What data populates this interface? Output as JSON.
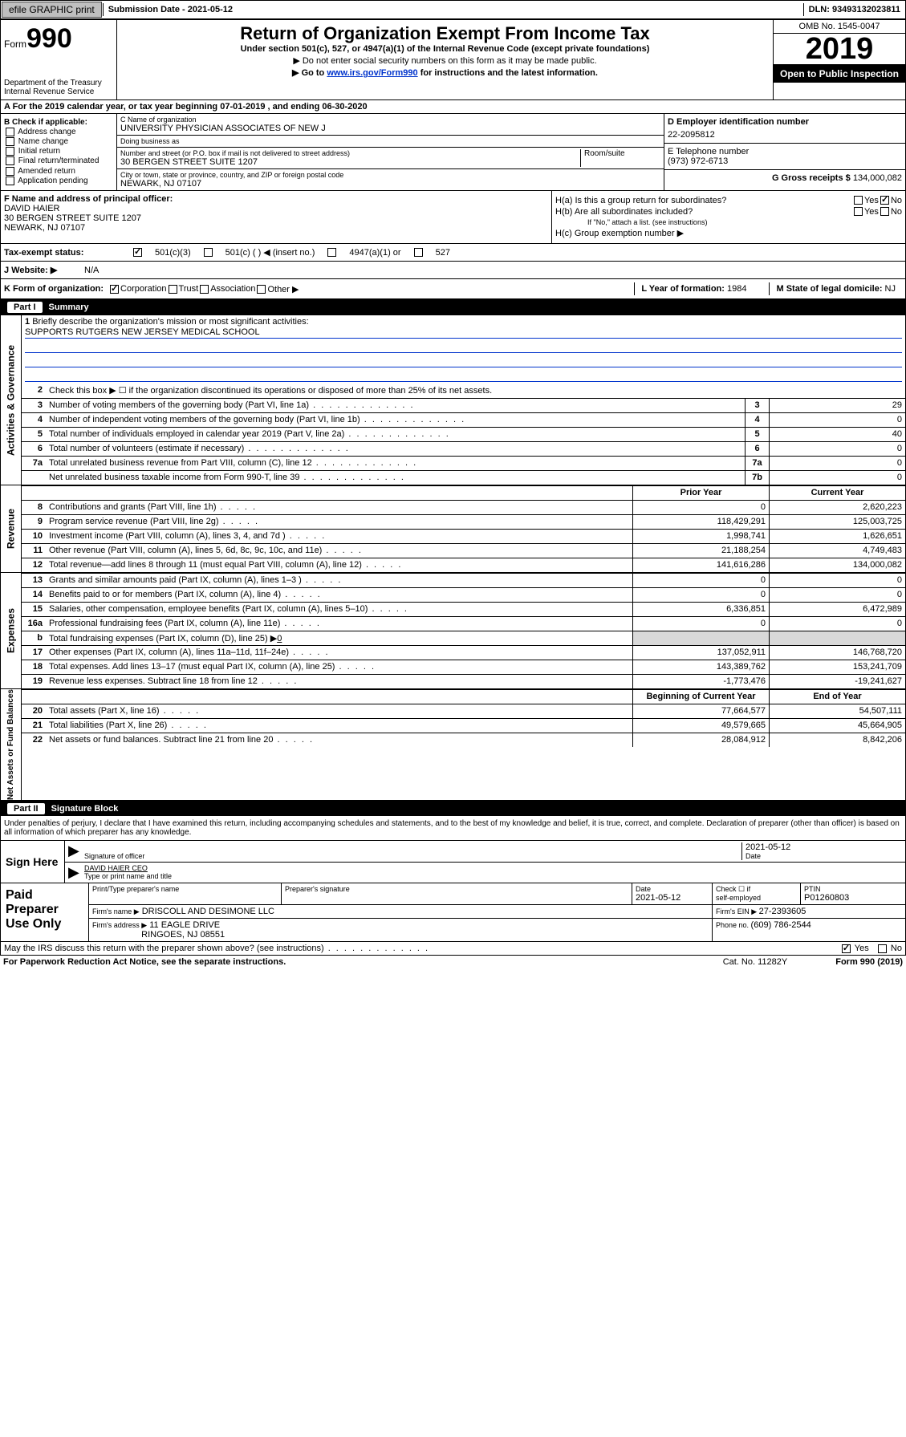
{
  "topbar": {
    "efile": "efile GRAPHIC print",
    "subdate_label": "Submission Date - ",
    "subdate": "2021-05-12",
    "dln": "DLN: 93493132023811"
  },
  "header": {
    "form_prefix": "Form",
    "form_no": "990",
    "dept": "Department of the Treasury\nInternal Revenue Service",
    "title": "Return of Organization Exempt From Income Tax",
    "sub": "Under section 501(c), 527, or 4947(a)(1) of the Internal Revenue Code (except private foundations)",
    "note1": "▶ Do not enter social security numbers on this form as it may be made public.",
    "note2_pre": "▶ Go to ",
    "note2_link": "www.irs.gov/Form990",
    "note2_post": " for instructions and the latest information.",
    "omb": "OMB No. 1545-0047",
    "year": "2019",
    "open": "Open to Public Inspection"
  },
  "period": {
    "text_a": "A For the 2019 calendar year, or tax year beginning ",
    "begin": "07-01-2019",
    "text_b": " , and ending ",
    "end": "06-30-2020"
  },
  "blockB": {
    "label": "B Check if applicable:",
    "items": [
      "Address change",
      "Name change",
      "Initial return",
      "Final return/terminated",
      "Amended return",
      "Application pending"
    ]
  },
  "blockC": {
    "name_label": "C Name of organization",
    "name": "UNIVERSITY PHYSICIAN ASSOCIATES OF NEW J",
    "dba_label": "Doing business as",
    "street_label": "Number and street (or P.O. box if mail is not delivered to street address)",
    "street": "30 BERGEN STREET SUITE 1207",
    "suite_label": "Room/suite",
    "city_label": "City or town, state or province, country, and ZIP or foreign postal code",
    "city": "NEWARK, NJ  07107"
  },
  "blockD": {
    "ein_label": "D Employer identification number",
    "ein": "22-2095812",
    "phone_label": "E Telephone number",
    "phone": "(973) 972-6713",
    "gross_label": "G Gross receipts $ ",
    "gross": "134,000,082"
  },
  "blockF": {
    "label": "F Name and address of principal officer:",
    "name": "DAVID HAIER",
    "addr1": "30 BERGEN STREET SUITE 1207",
    "addr2": "NEWARK, NJ  07107"
  },
  "blockH": {
    "a": "H(a)  Is this a group return for subordinates?",
    "b": "H(b)  Are all subordinates included?",
    "bnote": "If \"No,\" attach a list. (see instructions)",
    "c": "H(c)  Group exemption number ▶"
  },
  "tax": {
    "label": "Tax-exempt status:",
    "c3": "501(c)(3)",
    "c": "501(c) (  ) ◀ (insert no.)",
    "a1": "4947(a)(1) or",
    "s527": "527"
  },
  "blockJ": {
    "label": "J Website: ▶",
    "value": "N/A"
  },
  "blockK": {
    "label": "K Form of organization:",
    "corp": "Corporation",
    "trust": "Trust",
    "assoc": "Association",
    "other": "Other ▶",
    "L_label": "L Year of formation: ",
    "L": "1984",
    "M_label": "M State of legal domicile: ",
    "M": "NJ"
  },
  "parts": {
    "p1": "Part I",
    "p1t": "Summary",
    "p2": "Part II",
    "p2t": "Signature Block"
  },
  "side": {
    "gov": "Activities & Governance",
    "rev": "Revenue",
    "exp": "Expenses",
    "net": "Net Assets or Fund Balances"
  },
  "q1": {
    "label": "Briefly describe the organization's mission or most significant activities:",
    "mission": "SUPPORTS RUTGERS NEW JERSEY MEDICAL SCHOOL"
  },
  "q2": "Check this box ▶ ☐ if the organization discontinued its operations or disposed of more than 25% of its net assets.",
  "rows_gov": [
    {
      "n": "3",
      "d": "Number of voting members of the governing body (Part VI, line 1a)",
      "b": "3",
      "v": "29"
    },
    {
      "n": "4",
      "d": "Number of independent voting members of the governing body (Part VI, line 1b)",
      "b": "4",
      "v": "0"
    },
    {
      "n": "5",
      "d": "Total number of individuals employed in calendar year 2019 (Part V, line 2a)",
      "b": "5",
      "v": "40"
    },
    {
      "n": "6",
      "d": "Total number of volunteers (estimate if necessary)",
      "b": "6",
      "v": "0"
    },
    {
      "n": "7a",
      "d": "Total unrelated business revenue from Part VIII, column (C), line 12",
      "b": "7a",
      "v": "0"
    },
    {
      "n": "",
      "d": "Net unrelated business taxable income from Form 990-T, line 39",
      "b": "7b",
      "v": "0"
    }
  ],
  "colhdr": {
    "prior": "Prior Year",
    "current": "Current Year",
    "begin": "Beginning of Current Year",
    "end": "End of Year"
  },
  "rows_rev": [
    {
      "n": "8",
      "d": "Contributions and grants (Part VIII, line 1h)",
      "p": "0",
      "c": "2,620,223"
    },
    {
      "n": "9",
      "d": "Program service revenue (Part VIII, line 2g)",
      "p": "118,429,291",
      "c": "125,003,725"
    },
    {
      "n": "10",
      "d": "Investment income (Part VIII, column (A), lines 3, 4, and 7d )",
      "p": "1,998,741",
      "c": "1,626,651"
    },
    {
      "n": "11",
      "d": "Other revenue (Part VIII, column (A), lines 5, 6d, 8c, 9c, 10c, and 11e)",
      "p": "21,188,254",
      "c": "4,749,483"
    },
    {
      "n": "12",
      "d": "Total revenue—add lines 8 through 11 (must equal Part VIII, column (A), line 12)",
      "p": "141,616,286",
      "c": "134,000,082"
    }
  ],
  "rows_exp": [
    {
      "n": "13",
      "d": "Grants and similar amounts paid (Part IX, column (A), lines 1–3 )",
      "p": "0",
      "c": "0"
    },
    {
      "n": "14",
      "d": "Benefits paid to or for members (Part IX, column (A), line 4)",
      "p": "0",
      "c": "0"
    },
    {
      "n": "15",
      "d": "Salaries, other compensation, employee benefits (Part IX, column (A), lines 5–10)",
      "p": "6,336,851",
      "c": "6,472,989"
    },
    {
      "n": "16a",
      "d": "Professional fundraising fees (Part IX, column (A), line 11e)",
      "p": "0",
      "c": "0"
    }
  ],
  "row16b": {
    "n": "b",
    "d": "Total fundraising expenses (Part IX, column (D), line 25) ▶",
    "v": "0"
  },
  "rows_exp2": [
    {
      "n": "17",
      "d": "Other expenses (Part IX, column (A), lines 11a–11d, 11f–24e)",
      "p": "137,052,911",
      "c": "146,768,720"
    },
    {
      "n": "18",
      "d": "Total expenses. Add lines 13–17 (must equal Part IX, column (A), line 25)",
      "p": "143,389,762",
      "c": "153,241,709"
    },
    {
      "n": "19",
      "d": "Revenue less expenses. Subtract line 18 from line 12",
      "p": "-1,773,476",
      "c": "-19,241,627"
    }
  ],
  "rows_net": [
    {
      "n": "20",
      "d": "Total assets (Part X, line 16)",
      "p": "77,664,577",
      "c": "54,507,111"
    },
    {
      "n": "21",
      "d": "Total liabilities (Part X, line 26)",
      "p": "49,579,665",
      "c": "45,664,905"
    },
    {
      "n": "22",
      "d": "Net assets or fund balances. Subtract line 21 from line 20",
      "p": "28,084,912",
      "c": "8,842,206"
    }
  ],
  "sig": {
    "decl": "Under penalties of perjury, I declare that I have examined this return, including accompanying schedules and statements, and to the best of my knowledge and belief, it is true, correct, and complete. Declaration of preparer (other than officer) is based on all information of which preparer has any knowledge.",
    "sign": "Sign Here",
    "sigoff": "Signature of officer",
    "date": "2021-05-12",
    "date_label": "Date",
    "name": "DAVID HAIER  CEO",
    "name_label": "Type or print name and title"
  },
  "paid": {
    "title": "Paid Preparer Use Only",
    "h1": "Print/Type preparer's name",
    "h2": "Preparer's signature",
    "h3": "Date",
    "h3v": "2021-05-12",
    "h4a": "Check ☐ if",
    "h4b": "self-employed",
    "h5": "PTIN",
    "h5v": "P01260803",
    "firm_label": "Firm's name    ▶",
    "firm": "DRISCOLL AND DESIMONE LLC",
    "ein_label": "Firm's EIN ▶ ",
    "ein": "27-2393605",
    "addr_label": "Firm's address ▶",
    "addr1": "11 EAGLE DRIVE",
    "addr2": "RINGOES, NJ  08551",
    "phone_label": "Phone no. ",
    "phone": "(609) 786-2544"
  },
  "footer": {
    "q": "May the IRS discuss this return with the preparer shown above? (see instructions)",
    "notice": "For Paperwork Reduction Act Notice, see the separate instructions.",
    "cat": "Cat. No. 11282Y",
    "form": "Form 990 (2019)"
  }
}
